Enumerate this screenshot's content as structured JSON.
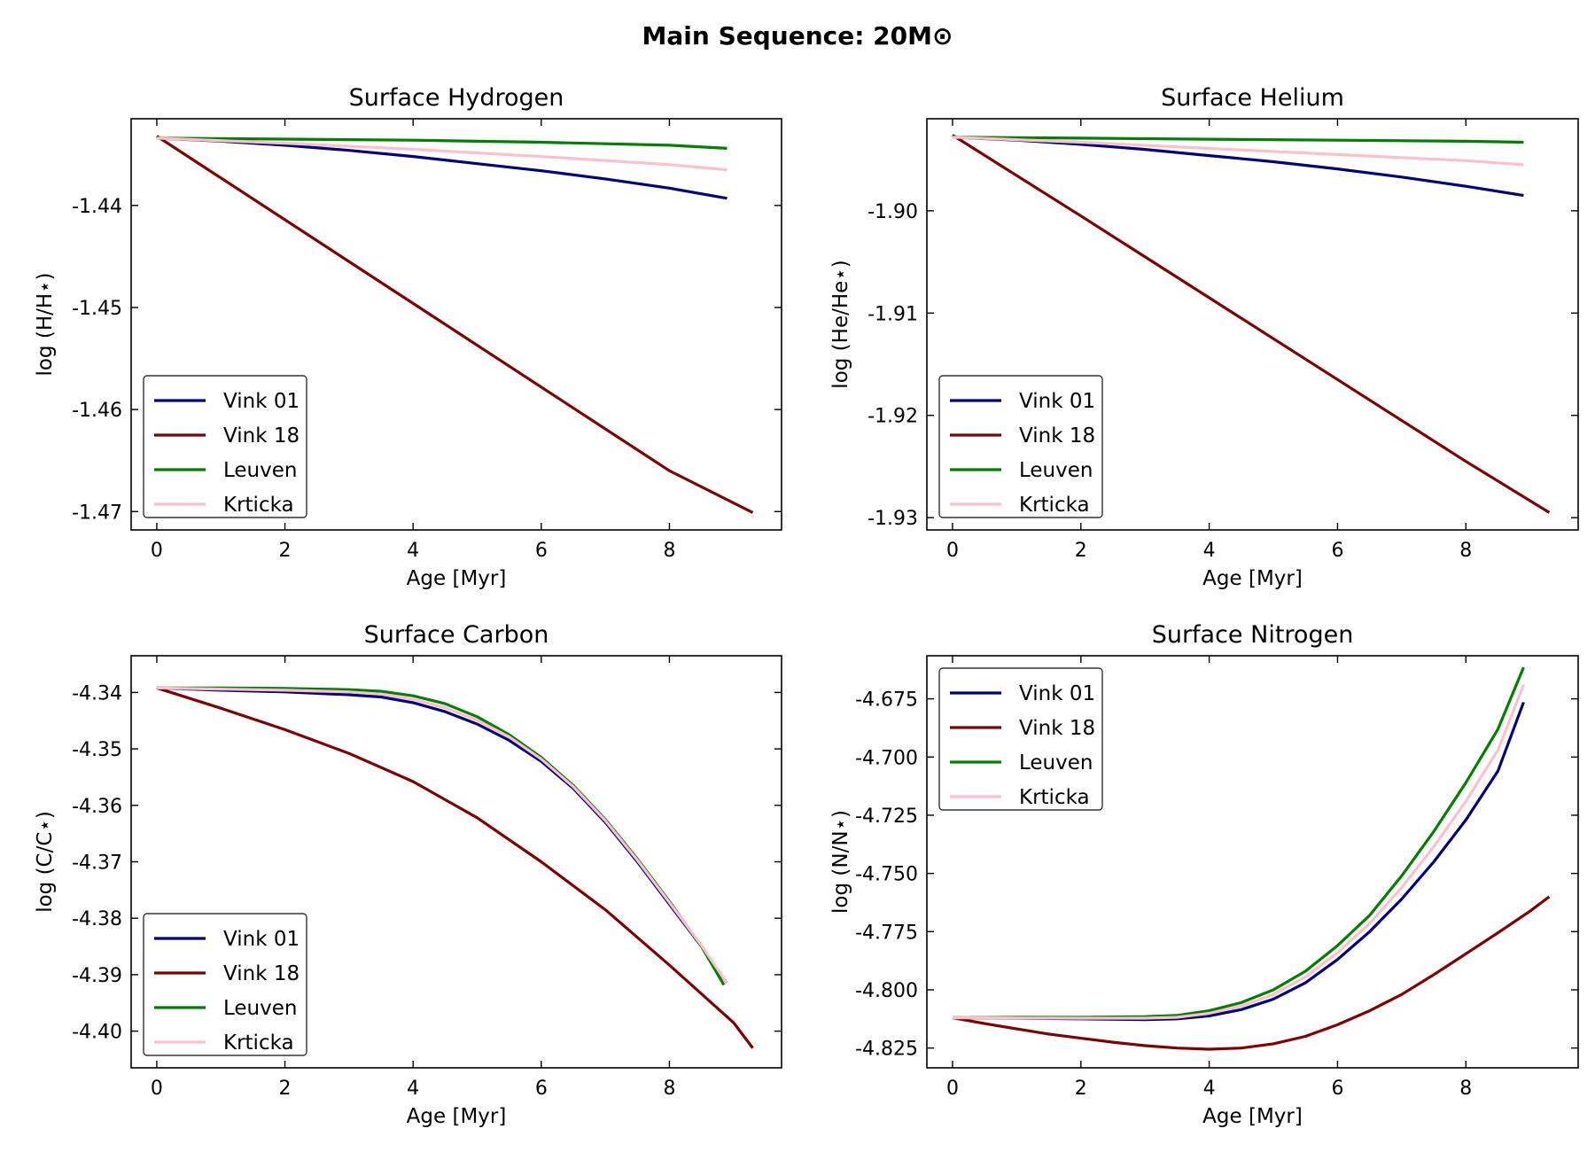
{
  "figure_title": "Main Sequence: 20M⊙",
  "chart_data": [
    {
      "type": "line",
      "title": "Surface Hydrogen",
      "xlabel": "Age [Myr]",
      "ylabel": "log (H/H⋆)",
      "xlim": [
        -0.4,
        9.75
      ],
      "ylim": [
        -1.4718,
        -1.4315
      ],
      "xticks": [
        0,
        2,
        4,
        6,
        8
      ],
      "yticks": [
        -1.44,
        -1.45,
        -1.46,
        -1.47
      ],
      "ytick_labels": [
        "-1.44",
        "-1.45",
        "-1.46",
        "-1.47"
      ],
      "legend_loc": "lower-left",
      "series": [
        {
          "name": "Vink 01",
          "color": "#00007f",
          "x": [
            0,
            1,
            2,
            3,
            4,
            5,
            6,
            7,
            8,
            8.9
          ],
          "y": [
            -1.4334,
            -1.4337,
            -1.4341,
            -1.4346,
            -1.4352,
            -1.4359,
            -1.4366,
            -1.4374,
            -1.4383,
            -1.4393
          ]
        },
        {
          "name": "Vink 18",
          "color": "#7f0000",
          "x": [
            0,
            2,
            4,
            6,
            8,
            9.3
          ],
          "y": [
            -1.4332,
            -1.4414,
            -1.4496,
            -1.4578,
            -1.466,
            -1.4701
          ]
        },
        {
          "name": "Leuven",
          "color": "#007f00",
          "x": [
            0,
            2,
            4,
            6,
            8,
            8.9
          ],
          "y": [
            -1.4334,
            -1.4335,
            -1.4336,
            -1.4338,
            -1.4341,
            -1.4344
          ]
        },
        {
          "name": "Krticka",
          "color": "#ffc0cb",
          "x": [
            0,
            2,
            4,
            6,
            8,
            8.9
          ],
          "y": [
            -1.4334,
            -1.4339,
            -1.4345,
            -1.4352,
            -1.436,
            -1.4365
          ]
        }
      ]
    },
    {
      "type": "line",
      "title": "Surface Helium",
      "xlabel": "Age [Myr]",
      "ylabel": "log (He/He⋆)",
      "xlim": [
        -0.4,
        9.75
      ],
      "ylim": [
        -1.9312,
        -1.891
      ],
      "xticks": [
        0,
        2,
        4,
        6,
        8
      ],
      "yticks": [
        -1.9,
        -1.91,
        -1.92,
        -1.93
      ],
      "ytick_labels": [
        "-1.90",
        "-1.91",
        "-1.92",
        "-1.93"
      ],
      "legend_loc": "lower-left",
      "series": [
        {
          "name": "Vink 01",
          "color": "#00007f",
          "x": [
            0,
            1,
            2,
            3,
            4,
            5,
            6,
            7,
            8,
            8.9
          ],
          "y": [
            -1.8928,
            -1.8931,
            -1.8935,
            -1.894,
            -1.8946,
            -1.8952,
            -1.8959,
            -1.8967,
            -1.8976,
            -1.8985
          ]
        },
        {
          "name": "Vink 18",
          "color": "#7f0000",
          "x": [
            0,
            2,
            4,
            6,
            8,
            9.3
          ],
          "y": [
            -1.8926,
            -1.9005,
            -1.9085,
            -1.9165,
            -1.9245,
            -1.9295
          ]
        },
        {
          "name": "Leuven",
          "color": "#007f00",
          "x": [
            0,
            2,
            4,
            6,
            8,
            8.9
          ],
          "y": [
            -1.8928,
            -1.8929,
            -1.893,
            -1.8931,
            -1.8932,
            -1.8933
          ]
        },
        {
          "name": "Krticka",
          "color": "#ffc0cb",
          "x": [
            0,
            2,
            4,
            6,
            8,
            8.9
          ],
          "y": [
            -1.8928,
            -1.8933,
            -1.8939,
            -1.8945,
            -1.8951,
            -1.8955
          ]
        }
      ]
    },
    {
      "type": "line",
      "title": "Surface Carbon",
      "xlabel": "Age [Myr]",
      "ylabel": "log (C/C⋆)",
      "xlim": [
        -0.4,
        9.75
      ],
      "ylim": [
        -4.4065,
        -4.3335
      ],
      "xticks": [
        0,
        2,
        4,
        6,
        8
      ],
      "yticks": [
        -4.34,
        -4.35,
        -4.36,
        -4.37,
        -4.38,
        -4.39,
        -4.4
      ],
      "ytick_labels": [
        "-4.34",
        "-4.35",
        "-4.36",
        "-4.37",
        "-4.38",
        "-4.39",
        "-4.40"
      ],
      "legend_loc": "lower-left",
      "series": [
        {
          "name": "Vink 01",
          "color": "#00007f",
          "x": [
            0,
            1,
            2,
            3,
            3.5,
            4,
            4.5,
            5,
            5.5,
            6,
            6.5,
            7,
            7.5,
            8,
            8.5,
            8.9
          ],
          "y": [
            -4.3392,
            -4.3396,
            -4.3399,
            -4.3404,
            -4.3408,
            -4.3418,
            -4.3434,
            -4.3456,
            -4.3485,
            -4.3522,
            -4.357,
            -4.363,
            -4.37,
            -4.3775,
            -4.385,
            -4.3915
          ]
        },
        {
          "name": "Vink 18",
          "color": "#7f0000",
          "x": [
            0,
            1,
            2,
            3,
            4,
            5,
            6,
            7,
            8,
            9,
            9.3
          ],
          "y": [
            -4.3392,
            -4.3428,
            -4.3466,
            -4.3508,
            -4.3558,
            -4.3622,
            -4.37,
            -4.3785,
            -4.3883,
            -4.3985,
            -4.403
          ]
        },
        {
          "name": "Leuven",
          "color": "#007f00",
          "x": [
            0,
            1,
            2,
            3,
            3.5,
            4,
            4.5,
            5,
            5.5,
            6,
            6.5,
            7,
            7.5,
            8,
            8.5,
            8.85
          ],
          "y": [
            -4.3392,
            -4.3392,
            -4.3393,
            -4.3395,
            -4.3398,
            -4.3406,
            -4.342,
            -4.3443,
            -4.3475,
            -4.3515,
            -4.3565,
            -4.3625,
            -4.3695,
            -4.377,
            -4.385,
            -4.3918
          ]
        },
        {
          "name": "Krticka",
          "color": "#ffc0cb",
          "x": [
            0,
            1,
            2,
            3,
            3.5,
            4,
            4.5,
            5,
            5.5,
            6,
            6.5,
            7,
            7.5,
            8,
            8.5,
            8.9
          ],
          "y": [
            -4.3392,
            -4.3394,
            -4.3396,
            -4.3399,
            -4.3403,
            -4.3412,
            -4.3427,
            -4.3449,
            -4.3479,
            -4.3518,
            -4.3567,
            -4.3627,
            -4.3697,
            -4.3772,
            -4.3848,
            -4.3915
          ]
        }
      ]
    },
    {
      "type": "line",
      "title": "Surface Nitrogen",
      "xlabel": "Age [Myr]",
      "ylabel": "log (N/N⋆)",
      "xlim": [
        -0.4,
        9.75
      ],
      "ylim": [
        -4.8335,
        -4.6565
      ],
      "xticks": [
        0,
        2,
        4,
        6,
        8
      ],
      "yticks": [
        -4.675,
        -4.7,
        -4.725,
        -4.75,
        -4.775,
        -4.8,
        -4.825
      ],
      "ytick_labels": [
        "-4.675",
        "-4.700",
        "-4.725",
        "-4.750",
        "-4.775",
        "-4.800",
        "-4.825"
      ],
      "legend_loc": "upper-left",
      "series": [
        {
          "name": "Vink 01",
          "color": "#00007f",
          "x": [
            0,
            1,
            2,
            3,
            3.5,
            4,
            4.5,
            5,
            5.5,
            6,
            6.5,
            7,
            7.5,
            8,
            8.5,
            8.9
          ],
          "y": [
            -4.812,
            -4.8122,
            -4.8125,
            -4.8128,
            -4.8125,
            -4.8112,
            -4.8085,
            -4.804,
            -4.797,
            -4.787,
            -4.775,
            -4.761,
            -4.745,
            -4.727,
            -4.706,
            -4.6765
          ]
        },
        {
          "name": "Vink 18",
          "color": "#7f0000",
          "x": [
            0,
            0.5,
            1,
            1.5,
            2,
            2.5,
            3,
            3.5,
            4,
            4.5,
            5,
            5.5,
            6,
            6.5,
            7,
            7.5,
            8,
            8.5,
            9,
            9.3
          ],
          "y": [
            -4.812,
            -4.8145,
            -4.8168,
            -4.819,
            -4.8208,
            -4.8225,
            -4.824,
            -4.825,
            -4.8255,
            -4.825,
            -4.8232,
            -4.82,
            -4.815,
            -4.809,
            -4.802,
            -4.7935,
            -4.7845,
            -4.7755,
            -4.7662,
            -4.76
          ]
        },
        {
          "name": "Leuven",
          "color": "#007f00",
          "x": [
            0,
            1,
            2,
            3,
            3.5,
            4,
            4.5,
            5,
            5.5,
            6,
            6.5,
            7,
            7.5,
            8,
            8.5,
            8.9
          ],
          "y": [
            -4.812,
            -4.8118,
            -4.8118,
            -4.8115,
            -4.811,
            -4.809,
            -4.8055,
            -4.8,
            -4.792,
            -4.781,
            -4.768,
            -4.751,
            -4.732,
            -4.711,
            -4.688,
            -4.6615
          ]
        },
        {
          "name": "Krticka",
          "color": "#ffc0cb",
          "x": [
            0,
            1,
            2,
            3,
            3.5,
            4,
            4.5,
            5,
            5.5,
            6,
            6.5,
            7,
            7.5,
            8,
            8.5,
            8.9
          ],
          "y": [
            -4.812,
            -4.8121,
            -4.8122,
            -4.8122,
            -4.8118,
            -4.8101,
            -4.807,
            -4.802,
            -4.7945,
            -4.784,
            -4.7715,
            -4.756,
            -4.7385,
            -4.719,
            -4.697,
            -4.669
          ]
        }
      ]
    }
  ]
}
